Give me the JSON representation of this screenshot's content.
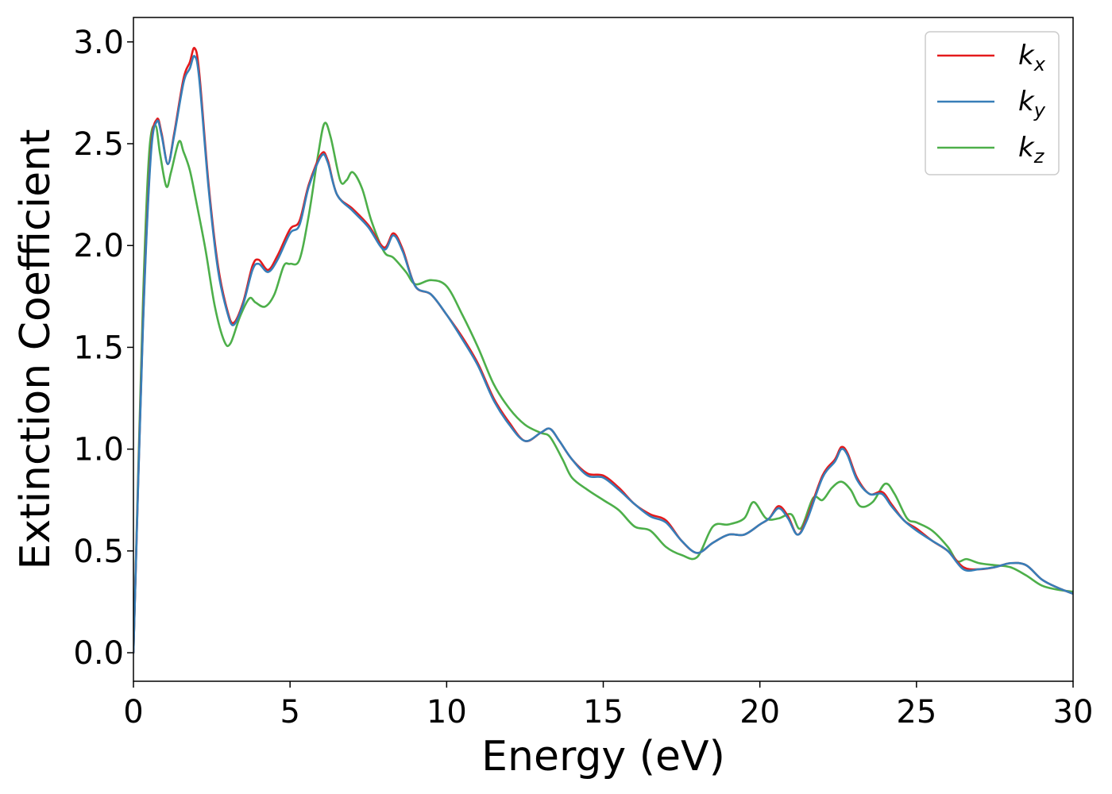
{
  "chart_data": {
    "type": "line",
    "title": "",
    "xlabel": "Energy (eV)",
    "ylabel": "Extinction Coefficient",
    "xlim": [
      0,
      30
    ],
    "ylim": [
      -0.14,
      3.12
    ],
    "xticks": [
      0,
      5,
      10,
      15,
      20,
      25,
      30
    ],
    "xtick_labels": [
      "0",
      "5",
      "10",
      "15",
      "20",
      "25",
      "30"
    ],
    "yticks": [
      0.0,
      0.5,
      1.0,
      1.5,
      2.0,
      2.5,
      3.0
    ],
    "ytick_labels": [
      "0.0",
      "0.5",
      "1.0",
      "1.5",
      "2.0",
      "2.5",
      "3.0"
    ],
    "grid": false,
    "legend_position": "top-right",
    "series": [
      {
        "name": "k",
        "subscript": "x",
        "color": "#e41a1c",
        "x": [
          0.0,
          0.3,
          0.55,
          0.75,
          0.9,
          1.1,
          1.3,
          1.6,
          1.8,
          1.95,
          2.1,
          2.4,
          2.7,
          3.0,
          3.2,
          3.5,
          3.8,
          4.0,
          4.3,
          4.6,
          5.0,
          5.3,
          5.6,
          6.0,
          6.2,
          6.5,
          7.0,
          7.5,
          8.0,
          8.3,
          8.6,
          9.0,
          9.5,
          10.0,
          10.5,
          11.0,
          11.5,
          12.0,
          12.5,
          13.0,
          13.3,
          13.6,
          14.0,
          14.5,
          15.0,
          15.5,
          16.0,
          16.5,
          17.0,
          17.5,
          18.0,
          18.5,
          19.0,
          19.5,
          20.0,
          20.3,
          20.6,
          20.9,
          21.2,
          21.5,
          22.0,
          22.4,
          22.6,
          22.8,
          23.1,
          23.5,
          23.9,
          24.2,
          24.6,
          25.0,
          25.5,
          26.0,
          26.5,
          27.0,
          27.5,
          28.0,
          28.5,
          29.0,
          29.5,
          30.0
        ],
        "y": [
          0.0,
          1.6,
          2.45,
          2.62,
          2.55,
          2.4,
          2.55,
          2.82,
          2.9,
          2.97,
          2.85,
          2.3,
          1.9,
          1.68,
          1.62,
          1.72,
          1.9,
          1.93,
          1.88,
          1.95,
          2.08,
          2.12,
          2.3,
          2.45,
          2.42,
          2.25,
          2.18,
          2.1,
          1.99,
          2.06,
          1.98,
          1.8,
          1.76,
          1.66,
          1.55,
          1.42,
          1.25,
          1.13,
          1.04,
          1.08,
          1.1,
          1.04,
          0.95,
          0.88,
          0.87,
          0.81,
          0.73,
          0.68,
          0.65,
          0.55,
          0.49,
          0.54,
          0.58,
          0.58,
          0.63,
          0.66,
          0.72,
          0.67,
          0.58,
          0.66,
          0.87,
          0.95,
          1.01,
          0.98,
          0.86,
          0.78,
          0.79,
          0.73,
          0.65,
          0.61,
          0.55,
          0.5,
          0.42,
          0.41,
          0.42,
          0.44,
          0.43,
          0.36,
          0.32,
          0.29
        ]
      },
      {
        "name": "k",
        "subscript": "y",
        "color": "#377eb8",
        "x": [
          0.0,
          0.3,
          0.55,
          0.75,
          0.9,
          1.1,
          1.3,
          1.6,
          1.8,
          1.95,
          2.1,
          2.4,
          2.7,
          3.0,
          3.2,
          3.5,
          3.8,
          4.0,
          4.3,
          4.6,
          5.0,
          5.3,
          5.6,
          6.0,
          6.2,
          6.5,
          7.0,
          7.5,
          8.0,
          8.3,
          8.6,
          9.0,
          9.5,
          10.0,
          10.5,
          11.0,
          11.5,
          12.0,
          12.5,
          13.0,
          13.3,
          13.6,
          14.0,
          14.5,
          15.0,
          15.5,
          16.0,
          16.5,
          17.0,
          17.5,
          18.0,
          18.5,
          19.0,
          19.5,
          20.0,
          20.3,
          20.6,
          20.9,
          21.2,
          21.5,
          22.0,
          22.4,
          22.6,
          22.8,
          23.1,
          23.5,
          23.9,
          24.2,
          24.6,
          25.0,
          25.5,
          26.0,
          26.5,
          27.0,
          27.5,
          28.0,
          28.5,
          29.0,
          29.5,
          30.0
        ],
        "y": [
          0.0,
          1.58,
          2.43,
          2.61,
          2.54,
          2.4,
          2.54,
          2.8,
          2.87,
          2.93,
          2.82,
          2.28,
          1.88,
          1.67,
          1.61,
          1.71,
          1.88,
          1.91,
          1.87,
          1.93,
          2.06,
          2.1,
          2.29,
          2.44,
          2.41,
          2.25,
          2.17,
          2.09,
          1.98,
          2.05,
          1.97,
          1.8,
          1.76,
          1.66,
          1.54,
          1.41,
          1.24,
          1.12,
          1.04,
          1.08,
          1.1,
          1.04,
          0.95,
          0.87,
          0.86,
          0.8,
          0.73,
          0.67,
          0.64,
          0.55,
          0.49,
          0.54,
          0.58,
          0.58,
          0.63,
          0.66,
          0.71,
          0.66,
          0.58,
          0.65,
          0.86,
          0.94,
          1.0,
          0.97,
          0.85,
          0.78,
          0.78,
          0.72,
          0.65,
          0.6,
          0.55,
          0.5,
          0.41,
          0.41,
          0.42,
          0.44,
          0.43,
          0.36,
          0.32,
          0.29
        ]
      },
      {
        "name": "k",
        "subscript": "z",
        "color": "#4daf4a",
        "x": [
          0.0,
          0.3,
          0.5,
          0.7,
          0.85,
          1.05,
          1.2,
          1.45,
          1.6,
          1.8,
          2.0,
          2.3,
          2.6,
          2.9,
          3.1,
          3.4,
          3.7,
          3.9,
          4.2,
          4.5,
          4.8,
          5.0,
          5.3,
          5.6,
          5.9,
          6.1,
          6.3,
          6.6,
          6.8,
          7.0,
          7.3,
          7.6,
          8.0,
          8.3,
          8.7,
          9.0,
          9.5,
          10.0,
          10.5,
          11.0,
          11.5,
          12.0,
          12.5,
          13.0,
          13.3,
          13.7,
          14.0,
          14.5,
          15.0,
          15.5,
          16.0,
          16.5,
          17.0,
          17.5,
          18.0,
          18.5,
          19.0,
          19.5,
          19.8,
          20.2,
          20.6,
          21.0,
          21.3,
          21.7,
          22.0,
          22.3,
          22.6,
          22.9,
          23.2,
          23.6,
          24.0,
          24.3,
          24.7,
          25.0,
          25.5,
          26.0,
          26.3,
          26.6,
          27.0,
          27.5,
          28.0,
          28.5,
          29.0,
          29.5,
          30.0
        ],
        "y": [
          0.0,
          1.7,
          2.45,
          2.59,
          2.45,
          2.29,
          2.36,
          2.51,
          2.46,
          2.37,
          2.22,
          1.98,
          1.7,
          1.53,
          1.52,
          1.65,
          1.74,
          1.72,
          1.7,
          1.76,
          1.9,
          1.91,
          1.93,
          2.15,
          2.45,
          2.6,
          2.53,
          2.32,
          2.32,
          2.36,
          2.28,
          2.12,
          1.97,
          1.94,
          1.87,
          1.81,
          1.83,
          1.8,
          1.66,
          1.5,
          1.32,
          1.2,
          1.12,
          1.08,
          1.06,
          0.95,
          0.86,
          0.8,
          0.75,
          0.7,
          0.62,
          0.6,
          0.52,
          0.48,
          0.47,
          0.62,
          0.63,
          0.66,
          0.74,
          0.66,
          0.66,
          0.68,
          0.61,
          0.76,
          0.75,
          0.81,
          0.84,
          0.8,
          0.72,
          0.74,
          0.83,
          0.78,
          0.66,
          0.64,
          0.6,
          0.52,
          0.45,
          0.46,
          0.44,
          0.43,
          0.42,
          0.38,
          0.33,
          0.31,
          0.3
        ]
      }
    ]
  }
}
